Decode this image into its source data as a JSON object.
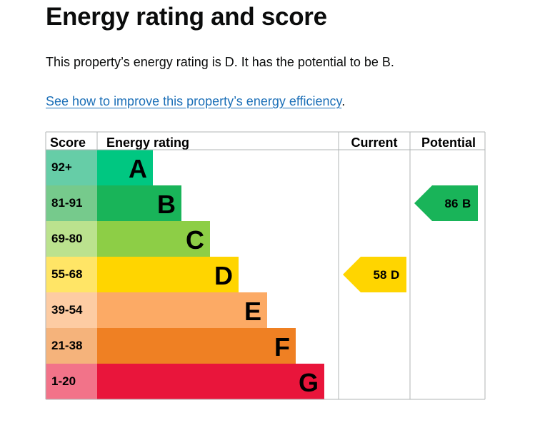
{
  "title": "Energy rating and score",
  "summary": "This property’s energy rating is D. It has the potential to be B.",
  "improve_link": "See how to improve this property’s energy efficiency",
  "improve_suffix": ".",
  "table": {
    "headers": {
      "score": "Score",
      "rating": "Energy rating",
      "current": "Current",
      "potential": "Potential"
    },
    "bands": [
      {
        "score": "92+",
        "letter": "A",
        "color": "#00c781",
        "tint": "#66cda7"
      },
      {
        "score": "81-91",
        "letter": "B",
        "color": "#19b459",
        "tint": "#76ca8c"
      },
      {
        "score": "69-80",
        "letter": "C",
        "color": "#8dce46",
        "tint": "#bbe28e"
      },
      {
        "score": "55-68",
        "letter": "D",
        "color": "#ffd500",
        "tint": "#ffe566"
      },
      {
        "score": "39-54",
        "letter": "E",
        "color": "#fcaa65",
        "tint": "#fdcca3"
      },
      {
        "score": "21-38",
        "letter": "F",
        "color": "#ef8023",
        "tint": "#f5b37b"
      },
      {
        "score": "1-20",
        "letter": "G",
        "color": "#e9153b",
        "tint": "#f27389"
      }
    ],
    "current": {
      "score": "58",
      "letter": "D",
      "band_index": 3
    },
    "potential": {
      "score": "86",
      "letter": "B",
      "band_index": 1
    }
  }
}
